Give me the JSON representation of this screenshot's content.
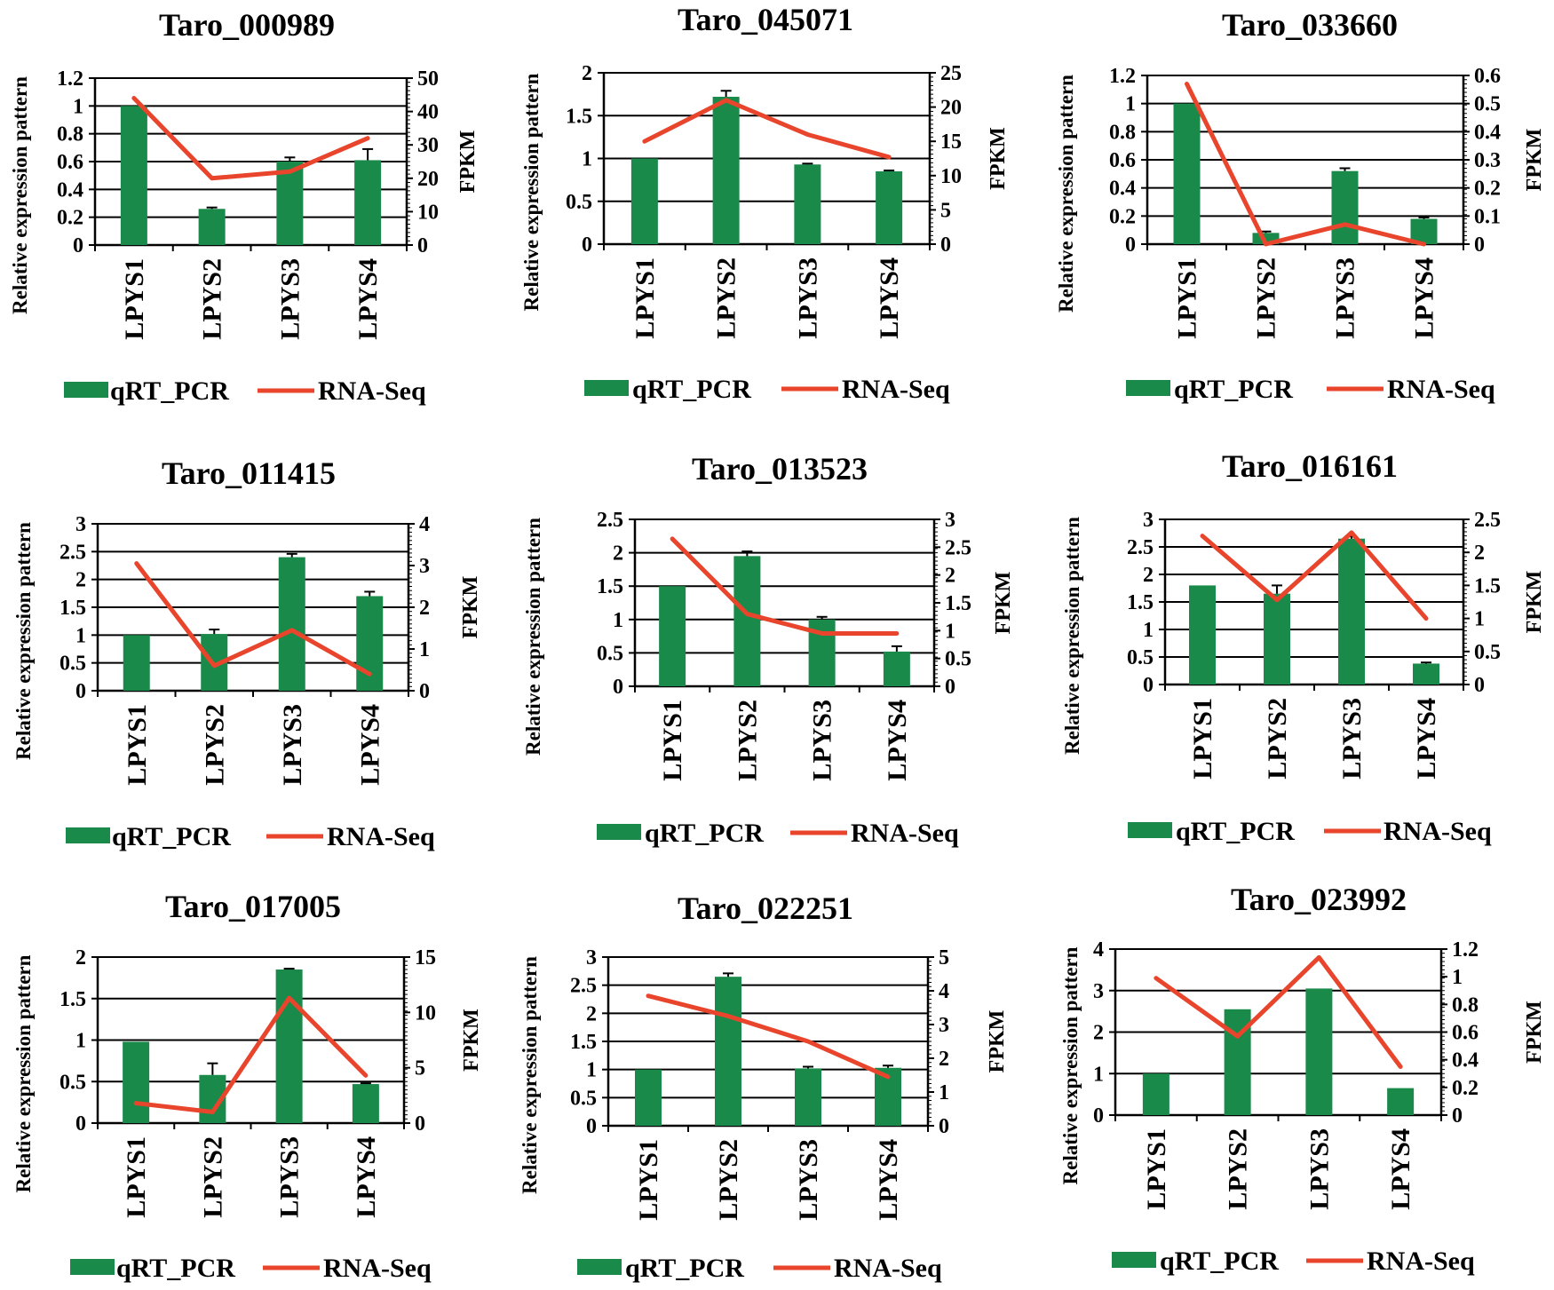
{
  "figure": {
    "bar_color": "#1a8a4a",
    "line_color": "#e8452c",
    "grid_color": "#000000"
  },
  "chart_data": [
    {
      "type": "bar+line",
      "title": "Taro_000989",
      "categories": [
        "LPYS1",
        "LPYS2",
        "LPYS3",
        "LPYS4"
      ],
      "ylabel": "Relative expression pattern",
      "y2label": "FPKM",
      "yticks": [
        "0",
        "0.2",
        "0.4",
        "0.6",
        "0.8",
        "1",
        "1.2"
      ],
      "ylim": [
        0,
        1.2
      ],
      "y2ticks": [
        "0",
        "10",
        "20",
        "30",
        "40",
        "50"
      ],
      "y2lim": [
        0,
        50
      ],
      "series": [
        {
          "name": "qRT_PCR",
          "kind": "bar",
          "axis": "left",
          "values": [
            1.0,
            0.26,
            0.6,
            0.61
          ],
          "errors": [
            0,
            0.01,
            0.03,
            0.08
          ]
        },
        {
          "name": "RNA-Seq",
          "kind": "line",
          "axis": "right",
          "values": [
            44,
            20,
            22,
            32
          ]
        }
      ]
    },
    {
      "type": "bar+line",
      "title": "Taro_045071",
      "categories": [
        "LPYS1",
        "LPYS2",
        "LPYS3",
        "LPYS4"
      ],
      "ylabel": "Relative expression pattern",
      "y2label": "FPKM",
      "yticks": [
        "0",
        "0.5",
        "1",
        "1.5",
        "2"
      ],
      "ylim": [
        0,
        2
      ],
      "y2ticks": [
        "0",
        "5",
        "10",
        "15",
        "20",
        "25"
      ],
      "y2lim": [
        0,
        25
      ],
      "series": [
        {
          "name": "qRT_PCR",
          "kind": "bar",
          "axis": "left",
          "values": [
            1.0,
            1.72,
            0.93,
            0.85
          ],
          "errors": [
            0,
            0.07,
            0.01,
            0.01
          ]
        },
        {
          "name": "RNA-Seq",
          "kind": "line",
          "axis": "right",
          "values": [
            15,
            21,
            16,
            12.7
          ]
        }
      ]
    },
    {
      "type": "bar+line",
      "title": "Taro_033660",
      "categories": [
        "LPYS1",
        "LPYS2",
        "LPYS3",
        "LPYS4"
      ],
      "ylabel": "Relative expression pattern",
      "y2label": "FPKM",
      "yticks": [
        "0",
        "0.2",
        "0.4",
        "0.6",
        "0.8",
        "1",
        "1.2"
      ],
      "ylim": [
        0,
        1.2
      ],
      "y2ticks": [
        "0",
        "0.1",
        "0.2",
        "0.3",
        "0.4",
        "0.5",
        "0.6"
      ],
      "y2lim": [
        0,
        0.6
      ],
      "series": [
        {
          "name": "qRT_PCR",
          "kind": "bar",
          "axis": "left",
          "values": [
            1.0,
            0.08,
            0.52,
            0.18
          ],
          "errors": [
            0,
            0.01,
            0.02,
            0.01
          ]
        },
        {
          "name": "RNA-Seq",
          "kind": "line",
          "axis": "right",
          "values": [
            0.57,
            0.0,
            0.07,
            0.0
          ]
        }
      ]
    },
    {
      "type": "bar+line",
      "title": "Taro_011415",
      "categories": [
        "LPYS1",
        "LPYS2",
        "LPYS3",
        "LPYS4"
      ],
      "ylabel": "Relative expression pattern",
      "y2label": "FPKM",
      "yticks": [
        "0",
        "0.5",
        "1",
        "1.5",
        "2",
        "2.5",
        "3"
      ],
      "ylim": [
        0,
        3
      ],
      "y2ticks": [
        "0",
        "1",
        "2",
        "3",
        "4"
      ],
      "y2lim": [
        0,
        4
      ],
      "series": [
        {
          "name": "qRT_PCR",
          "kind": "bar",
          "axis": "left",
          "values": [
            1.0,
            1.02,
            2.4,
            1.7
          ],
          "errors": [
            0,
            0.08,
            0.06,
            0.08
          ]
        },
        {
          "name": "RNA-Seq",
          "kind": "line",
          "axis": "right",
          "values": [
            3.05,
            0.6,
            1.45,
            0.4
          ]
        }
      ]
    },
    {
      "type": "bar+line",
      "title": "Taro_013523",
      "categories": [
        "LPYS1",
        "LPYS2",
        "LPYS3",
        "LPYS4"
      ],
      "ylabel": "Relative expression pattern",
      "y2label": "FPKM",
      "yticks": [
        "0",
        "0.5",
        "1",
        "1.5",
        "2",
        "2.5"
      ],
      "ylim": [
        0,
        2.5
      ],
      "y2ticks": [
        "0",
        "0.5",
        "1",
        "1.5",
        "2",
        "2.5",
        "3"
      ],
      "y2lim": [
        0,
        3
      ],
      "series": [
        {
          "name": "qRT_PCR",
          "kind": "bar",
          "axis": "left",
          "values": [
            1.5,
            1.95,
            1.0,
            0.52
          ],
          "errors": [
            0,
            0.07,
            0.04,
            0.08
          ]
        },
        {
          "name": "RNA-Seq",
          "kind": "line",
          "axis": "right",
          "values": [
            2.65,
            1.3,
            0.95,
            0.95
          ]
        }
      ]
    },
    {
      "type": "bar+line",
      "title": "Taro_016161",
      "categories": [
        "LPYS1",
        "LPYS2",
        "LPYS3",
        "LPYS4"
      ],
      "ylabel": "Relative expression pattern",
      "y2label": "FPKM",
      "yticks": [
        "0",
        "0.5",
        "1",
        "1.5",
        "2",
        "2.5",
        "3"
      ],
      "ylim": [
        0,
        3
      ],
      "y2ticks": [
        "0",
        "0.5",
        "1",
        "1.5",
        "2",
        "2.5"
      ],
      "y2lim": [
        0,
        2.5
      ],
      "series": [
        {
          "name": "qRT_PCR",
          "kind": "bar",
          "axis": "left",
          "values": [
            1.8,
            1.65,
            2.65,
            0.38
          ],
          "errors": [
            0,
            0.15,
            0.04,
            0.02
          ]
        },
        {
          "name": "RNA-Seq",
          "kind": "line",
          "axis": "right",
          "values": [
            2.25,
            1.28,
            2.3,
            1.0
          ]
        }
      ]
    },
    {
      "type": "bar+line",
      "title": "Taro_017005",
      "categories": [
        "LPYS1",
        "LPYS2",
        "LPYS3",
        "LPYS4"
      ],
      "ylabel": "Relative expression pattern",
      "y2label": "FPKM",
      "yticks": [
        "0",
        "0.5",
        "1",
        "1.5",
        "2"
      ],
      "ylim": [
        0,
        2
      ],
      "y2ticks": [
        "0",
        "5",
        "10",
        "15"
      ],
      "y2lim": [
        0,
        15
      ],
      "series": [
        {
          "name": "qRT_PCR",
          "kind": "bar",
          "axis": "left",
          "values": [
            0.98,
            0.58,
            1.85,
            0.47
          ],
          "errors": [
            0,
            0.14,
            0.01,
            0.01
          ]
        },
        {
          "name": "RNA-Seq",
          "kind": "line",
          "axis": "right",
          "values": [
            1.8,
            1.0,
            11.3,
            4.3
          ]
        }
      ]
    },
    {
      "type": "bar+line",
      "title": "Taro_022251",
      "categories": [
        "LPYS1",
        "LPYS2",
        "LPYS3",
        "LPYS4"
      ],
      "ylabel": "Relative expression pattern",
      "y2label": "FPKM",
      "yticks": [
        "0",
        "0.5",
        "1",
        "1.5",
        "2",
        "2.5",
        "3"
      ],
      "ylim": [
        0,
        3
      ],
      "y2ticks": [
        "0",
        "1",
        "2",
        "3",
        "4",
        "5"
      ],
      "y2lim": [
        0,
        5
      ],
      "series": [
        {
          "name": "qRT_PCR",
          "kind": "bar",
          "axis": "left",
          "values": [
            1.0,
            2.65,
            1.02,
            1.03
          ],
          "errors": [
            0,
            0.06,
            0.03,
            0.04
          ]
        },
        {
          "name": "RNA-Seq",
          "kind": "line",
          "axis": "right",
          "values": [
            3.85,
            3.25,
            2.5,
            1.45
          ]
        }
      ]
    },
    {
      "type": "bar+line",
      "title": "Taro_023992",
      "categories": [
        "LPYS1",
        "LPYS2",
        "LPYS3",
        "LPYS4"
      ],
      "ylabel": "Relative expression pattern",
      "y2label": "FPKM",
      "yticks": [
        "0",
        "1",
        "2",
        "3",
        "4"
      ],
      "ylim": [
        0,
        4
      ],
      "y2ticks": [
        "0",
        "0.2",
        "0.4",
        "0.6",
        "0.8",
        "1",
        "1.2"
      ],
      "y2lim": [
        0,
        1.2
      ],
      "series": [
        {
          "name": "qRT_PCR",
          "kind": "bar",
          "axis": "left",
          "values": [
            1.0,
            2.55,
            3.05,
            0.65
          ],
          "errors": [
            0,
            0,
            0,
            0
          ]
        },
        {
          "name": "RNA-Seq",
          "kind": "line",
          "axis": "right",
          "values": [
            0.99,
            0.57,
            1.14,
            0.35
          ]
        }
      ]
    }
  ]
}
